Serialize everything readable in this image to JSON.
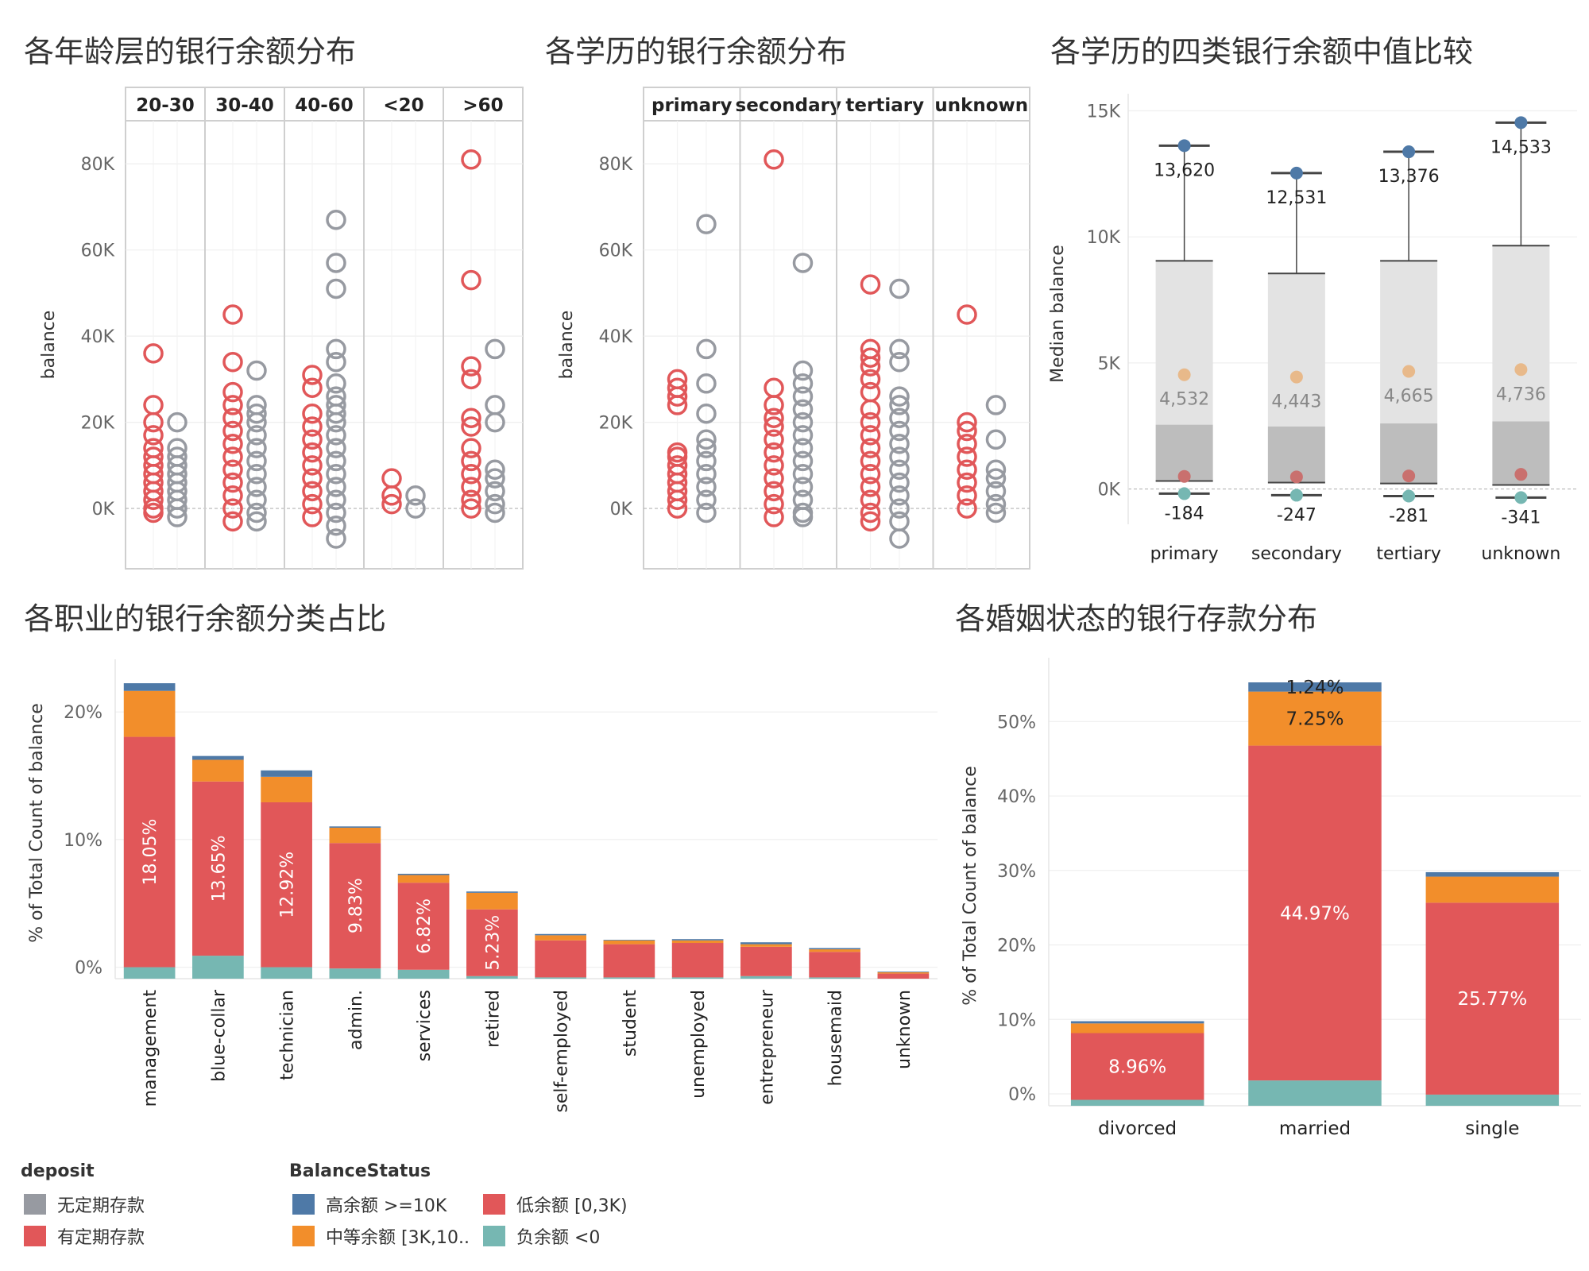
{
  "colors": {
    "no_deposit": "#979AA1",
    "deposit": "#E15759",
    "high": "#4E79A7",
    "medium": "#F28E2B",
    "low": "#E15759",
    "negative": "#76B7B2",
    "box_light": "#E3E3E3",
    "box_dark": "#BDBDBD",
    "median_dot": "#E8B98A",
    "low_dot": "#C9706E"
  },
  "chart_data": [
    {
      "id": "age",
      "type": "scatter",
      "title": "各年龄层的银行余额分布",
      "ylabel": "balance",
      "ylim": [
        -14000,
        90000
      ],
      "yticks": [
        0,
        20000,
        40000,
        60000,
        80000
      ],
      "ytick_labels": [
        "0K",
        "20K",
        "40K",
        "60K",
        "80K"
      ],
      "groups": [
        "20-30",
        "30-40",
        "40-60",
        "<20",
        ">60"
      ],
      "series": [
        {
          "name": "有定期存款",
          "points": [
            [
              0,
              36000
            ],
            [
              0,
              24000
            ],
            [
              0,
              20000
            ],
            [
              0,
              17000
            ],
            [
              0,
              14000
            ],
            [
              0,
              12000
            ],
            [
              0,
              10000
            ],
            [
              0,
              8000
            ],
            [
              0,
              6000
            ],
            [
              0,
              4000
            ],
            [
              0,
              2000
            ],
            [
              0,
              0
            ],
            [
              0,
              -1000
            ],
            [
              1,
              45000
            ],
            [
              1,
              34000
            ],
            [
              1,
              27000
            ],
            [
              1,
              24000
            ],
            [
              1,
              21000
            ],
            [
              1,
              18000
            ],
            [
              1,
              15000
            ],
            [
              1,
              12000
            ],
            [
              1,
              9000
            ],
            [
              1,
              6000
            ],
            [
              1,
              3000
            ],
            [
              1,
              0
            ],
            [
              1,
              -3000
            ],
            [
              2,
              31000
            ],
            [
              2,
              28000
            ],
            [
              2,
              22000
            ],
            [
              2,
              19000
            ],
            [
              2,
              16000
            ],
            [
              2,
              13000
            ],
            [
              2,
              10000
            ],
            [
              2,
              7000
            ],
            [
              2,
              4000
            ],
            [
              2,
              1000
            ],
            [
              2,
              -2000
            ],
            [
              3,
              7000
            ],
            [
              3,
              3000
            ],
            [
              3,
              1000
            ],
            [
              4,
              81000
            ],
            [
              4,
              53000
            ],
            [
              4,
              33000
            ],
            [
              4,
              30000
            ],
            [
              4,
              21000
            ],
            [
              4,
              19000
            ],
            [
              4,
              14000
            ],
            [
              4,
              11000
            ],
            [
              4,
              8000
            ],
            [
              4,
              5000
            ],
            [
              4,
              2000
            ],
            [
              4,
              0
            ]
          ]
        },
        {
          "name": "无定期存款",
          "points": [
            [
              0,
              20000
            ],
            [
              0,
              14000
            ],
            [
              0,
              12000
            ],
            [
              0,
              10000
            ],
            [
              0,
              8000
            ],
            [
              0,
              6000
            ],
            [
              0,
              4000
            ],
            [
              0,
              2000
            ],
            [
              0,
              0
            ],
            [
              0,
              -2000
            ],
            [
              1,
              32000
            ],
            [
              1,
              24000
            ],
            [
              1,
              22000
            ],
            [
              1,
              20000
            ],
            [
              1,
              17000
            ],
            [
              1,
              14000
            ],
            [
              1,
              11000
            ],
            [
              1,
              8000
            ],
            [
              1,
              5000
            ],
            [
              1,
              2000
            ],
            [
              1,
              -1000
            ],
            [
              1,
              -3000
            ],
            [
              2,
              67000
            ],
            [
              2,
              57000
            ],
            [
              2,
              51000
            ],
            [
              2,
              37000
            ],
            [
              2,
              34000
            ],
            [
              2,
              29000
            ],
            [
              2,
              26000
            ],
            [
              2,
              24000
            ],
            [
              2,
              22000
            ],
            [
              2,
              20000
            ],
            [
              2,
              17000
            ],
            [
              2,
              14000
            ],
            [
              2,
              11000
            ],
            [
              2,
              8000
            ],
            [
              2,
              5000
            ],
            [
              2,
              2000
            ],
            [
              2,
              -1000
            ],
            [
              2,
              -4000
            ],
            [
              2,
              -7000
            ],
            [
              3,
              3000
            ],
            [
              3,
              0
            ],
            [
              4,
              37000
            ],
            [
              4,
              24000
            ],
            [
              4,
              20000
            ],
            [
              4,
              9000
            ],
            [
              4,
              7000
            ],
            [
              4,
              4000
            ],
            [
              4,
              1000
            ],
            [
              4,
              -1000
            ]
          ]
        }
      ]
    },
    {
      "id": "edu",
      "type": "scatter",
      "title": "各学历的银行余额分布",
      "ylabel": "balance",
      "ylim": [
        -14000,
        90000
      ],
      "yticks": [
        0,
        20000,
        40000,
        60000,
        80000
      ],
      "ytick_labels": [
        "0K",
        "20K",
        "40K",
        "60K",
        "80K"
      ],
      "groups": [
        "primary",
        "secondary",
        "tertiary",
        "unknown"
      ],
      "series": [
        {
          "name": "有定期存款",
          "points": [
            [
              0,
              30000
            ],
            [
              0,
              28000
            ],
            [
              0,
              26000
            ],
            [
              0,
              24000
            ],
            [
              0,
              13000
            ],
            [
              0,
              12000
            ],
            [
              0,
              10000
            ],
            [
              0,
              8000
            ],
            [
              0,
              6000
            ],
            [
              0,
              4000
            ],
            [
              0,
              2000
            ],
            [
              0,
              0
            ],
            [
              1,
              81000
            ],
            [
              1,
              28000
            ],
            [
              1,
              24000
            ],
            [
              1,
              21000
            ],
            [
              1,
              19000
            ],
            [
              1,
              16000
            ],
            [
              1,
              13000
            ],
            [
              1,
              10000
            ],
            [
              1,
              7000
            ],
            [
              1,
              4000
            ],
            [
              1,
              1000
            ],
            [
              1,
              -2000
            ],
            [
              2,
              52000
            ],
            [
              2,
              37000
            ],
            [
              2,
              35000
            ],
            [
              2,
              33000
            ],
            [
              2,
              30000
            ],
            [
              2,
              27000
            ],
            [
              2,
              23000
            ],
            [
              2,
              20000
            ],
            [
              2,
              17000
            ],
            [
              2,
              14000
            ],
            [
              2,
              11000
            ],
            [
              2,
              8000
            ],
            [
              2,
              5000
            ],
            [
              2,
              2000
            ],
            [
              2,
              -1000
            ],
            [
              2,
              -3000
            ],
            [
              3,
              45000
            ],
            [
              3,
              20000
            ],
            [
              3,
              18000
            ],
            [
              3,
              15000
            ],
            [
              3,
              12000
            ],
            [
              3,
              9000
            ],
            [
              3,
              6000
            ],
            [
              3,
              3000
            ],
            [
              3,
              0
            ]
          ]
        },
        {
          "name": "无定期存款",
          "points": [
            [
              0,
              66000
            ],
            [
              0,
              37000
            ],
            [
              0,
              29000
            ],
            [
              0,
              22000
            ],
            [
              0,
              16000
            ],
            [
              0,
              14000
            ],
            [
              0,
              11000
            ],
            [
              0,
              8000
            ],
            [
              0,
              5000
            ],
            [
              0,
              2000
            ],
            [
              0,
              -1000
            ],
            [
              1,
              57000
            ],
            [
              1,
              32000
            ],
            [
              1,
              29000
            ],
            [
              1,
              26000
            ],
            [
              1,
              23000
            ],
            [
              1,
              20000
            ],
            [
              1,
              17000
            ],
            [
              1,
              14000
            ],
            [
              1,
              11000
            ],
            [
              1,
              8000
            ],
            [
              1,
              5000
            ],
            [
              1,
              2000
            ],
            [
              1,
              -1000
            ],
            [
              1,
              -2000
            ],
            [
              2,
              51000
            ],
            [
              2,
              37000
            ],
            [
              2,
              34000
            ],
            [
              2,
              26000
            ],
            [
              2,
              24000
            ],
            [
              2,
              21000
            ],
            [
              2,
              18000
            ],
            [
              2,
              15000
            ],
            [
              2,
              12000
            ],
            [
              2,
              9000
            ],
            [
              2,
              6000
            ],
            [
              2,
              3000
            ],
            [
              2,
              0
            ],
            [
              2,
              -3000
            ],
            [
              2,
              -7000
            ],
            [
              3,
              24000
            ],
            [
              3,
              16000
            ],
            [
              3,
              9000
            ],
            [
              3,
              7000
            ],
            [
              3,
              4000
            ],
            [
              3,
              1000
            ],
            [
              3,
              -1000
            ]
          ]
        }
      ]
    },
    {
      "id": "box",
      "type": "box",
      "title": "各学历的四类银行余额中值比较",
      "ylabel": "Median balance",
      "ylim": [
        -1400,
        15300
      ],
      "yticks": [
        0,
        5000,
        10000,
        15000
      ],
      "ytick_labels": [
        "0K",
        "5K",
        "10K",
        "15K"
      ],
      "categories": [
        "primary",
        "secondary",
        "tertiary",
        "unknown"
      ],
      "top": [
        13620,
        12531,
        13376,
        14533
      ],
      "top_labels": [
        "13,620",
        "12,531",
        "13,376",
        "14,533"
      ],
      "median": [
        4532,
        4443,
        4665,
        4736
      ],
      "median_labels": [
        "4,532",
        "4,443",
        "4,665",
        "4,736"
      ],
      "low": [
        500,
        480,
        520,
        580
      ],
      "bottom": [
        -184,
        -247,
        -281,
        -341
      ],
      "bottom_labels": [
        "-184",
        "-247",
        "-281",
        "-341"
      ],
      "q3": [
        9050,
        8550,
        9050,
        9650
      ],
      "q1": [
        2550,
        2480,
        2600,
        2680
      ]
    },
    {
      "id": "job",
      "type": "bar",
      "stacked": true,
      "title": "各职业的银行余额分类占比",
      "ylabel": "% of Total Count of balance",
      "ylim": [
        -0.9,
        23.5
      ],
      "yticks": [
        0,
        10,
        20
      ],
      "ytick_labels": [
        "0%",
        "10%",
        "20%"
      ],
      "categories": [
        "management",
        "blue-collar",
        "technician",
        "admin.",
        "services",
        "retired",
        "self-employed",
        "student",
        "unemployed",
        "entrepreneur",
        "housemaid",
        "unknown"
      ],
      "series": [
        {
          "name": "负余额 <0",
          "key": "negative",
          "values": [
            0.9,
            1.8,
            0.9,
            0.8,
            0.7,
            0.2,
            0.1,
            0.1,
            0.1,
            0.2,
            0.1,
            0.0
          ]
        },
        {
          "name": "低余额 [0,3K)",
          "key": "low",
          "values": [
            18.05,
            13.65,
            12.92,
            9.83,
            6.82,
            5.23,
            2.9,
            2.6,
            2.7,
            2.3,
            2.0,
            0.4
          ]
        },
        {
          "name": "中等余额 [3K,10..",
          "key": "medium",
          "values": [
            3.6,
            1.7,
            2.0,
            1.2,
            0.6,
            1.3,
            0.4,
            0.3,
            0.2,
            0.2,
            0.2,
            0.1
          ]
        },
        {
          "name": "高余额 >=10K",
          "key": "high",
          "values": [
            0.6,
            0.3,
            0.5,
            0.1,
            0.1,
            0.1,
            0.1,
            0.05,
            0.1,
            0.15,
            0.1,
            0.05
          ]
        }
      ],
      "labels": [
        "18.05%",
        "13.65%",
        "12.92%",
        "9.83%",
        "6.82%",
        "5.23%",
        "",
        "",
        "",
        "",
        "",
        ""
      ]
    },
    {
      "id": "marital",
      "type": "bar",
      "stacked": true,
      "title": "各婚姻状态的银行存款分布",
      "ylabel": "% of Total Count of balance",
      "ylim": [
        -1.6,
        57.5
      ],
      "yticks": [
        0,
        10,
        20,
        30,
        40,
        50
      ],
      "ytick_labels": [
        "0%",
        "10%",
        "20%",
        "30%",
        "40%",
        "50%"
      ],
      "categories": [
        "divorced",
        "married",
        "single"
      ],
      "series": [
        {
          "name": "负余额 <0",
          "key": "negative",
          "values": [
            0.8,
            3.4,
            1.5
          ]
        },
        {
          "name": "低余额 [0,3K)",
          "key": "low",
          "values": [
            8.96,
            44.97,
            25.77
          ]
        },
        {
          "name": "中等余额 [3K,10..",
          "key": "medium",
          "values": [
            1.3,
            7.25,
            3.5
          ]
        },
        {
          "name": "高余额 >=10K",
          "key": "high",
          "values": [
            0.3,
            1.24,
            0.6
          ]
        }
      ],
      "low_labels": [
        "8.96%",
        "44.97%",
        "25.77%"
      ],
      "medium_labels": [
        "",
        "7.25%",
        ""
      ],
      "high_labels": [
        "",
        "1.24%",
        ""
      ]
    }
  ],
  "legend": {
    "deposit_title": "deposit",
    "deposit_items": [
      "无定期存款",
      "有定期存款"
    ],
    "balance_title": "BalanceStatus",
    "balance_items": [
      "高余额 >=10K",
      "低余额 [0,3K)",
      "中等余额 [3K,10..",
      "负余额 <0"
    ]
  }
}
